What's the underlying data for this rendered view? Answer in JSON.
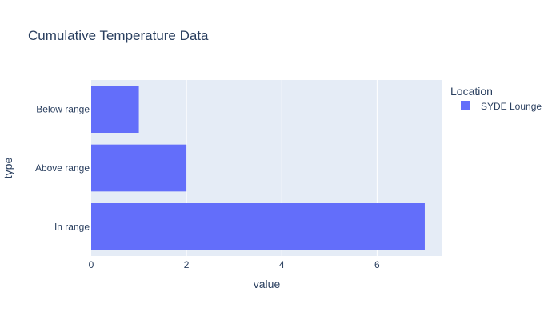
{
  "chart_data": {
    "type": "bar",
    "orientation": "horizontal",
    "title": "Cumulative Temperature Data",
    "xlabel": "value",
    "ylabel": "type",
    "categories": [
      "In range",
      "Above range",
      "Below range"
    ],
    "series": [
      {
        "name": "SYDE Lounge",
        "values": [
          7,
          2,
          1
        ],
        "color": "#636efa"
      }
    ],
    "xlim": [
      0,
      7.37
    ],
    "xticks": [
      0,
      2,
      4,
      6
    ],
    "grid": true,
    "plot_background": "#e5ecf6",
    "legend": {
      "title": "Location",
      "placement": "right"
    }
  }
}
